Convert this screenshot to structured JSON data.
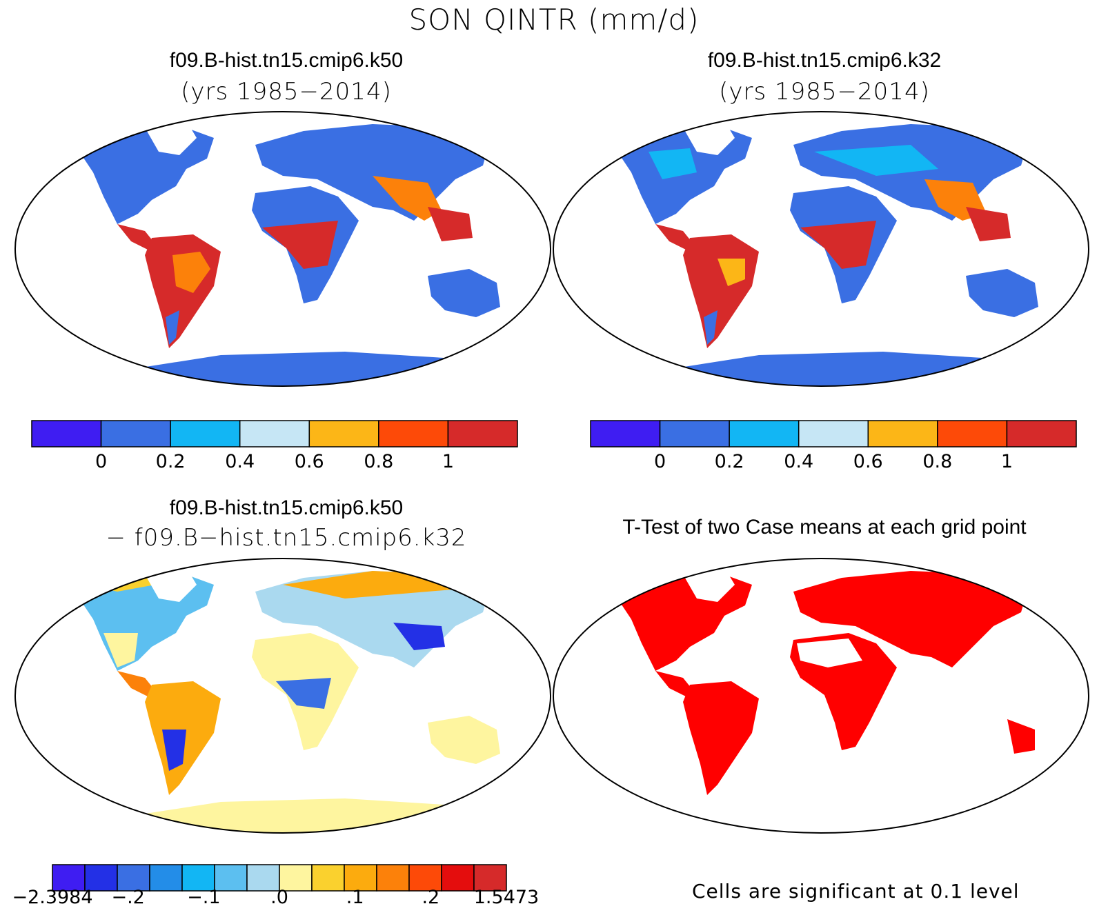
{
  "title": "SON QINTR (mm/d)",
  "panels": [
    {
      "id": "k50",
      "title": "f09.B-hist.tn15.cmip6.k50",
      "subtitle": "(yrs 1985−2014)"
    },
    {
      "id": "k32",
      "title": "f09.B-hist.tn15.cmip6.k32",
      "subtitle": "(yrs 1985−2014)"
    },
    {
      "id": "diff",
      "title": "f09.B-hist.tn15.cmip6.k50",
      "subtitle": "− f09.B−hist.tn15.cmip6.k32"
    },
    {
      "id": "ttest",
      "title": "T-Test of two Case means at each grid point",
      "note": "Cells are significant at 0.1 level"
    }
  ],
  "colorbars": {
    "abs": {
      "colors": [
        "#3f1df2",
        "#3a6fe3",
        "#12b6f4",
        "#c6e6f5",
        "#fcb617",
        "#fd4a08",
        "#d62a2a"
      ],
      "labels": [
        "0",
        "0.2",
        "0.4",
        "0.6",
        "0.8",
        "1"
      ]
    },
    "diff": {
      "colors": [
        "#3f1df2",
        "#2330e6",
        "#3a6fe3",
        "#238de8",
        "#12b6f4",
        "#5cbff0",
        "#aad9ef",
        "#fef59f",
        "#fad12e",
        "#fcab0e",
        "#fc810a",
        "#fd4a08",
        "#e40d0d",
        "#d62a2a"
      ],
      "labels": [
        "−2.3984",
        "−.2",
        "−.1",
        ".0",
        ".1",
        ".2",
        "1.5473"
      ]
    }
  },
  "ttest_color": "#ff0000"
}
